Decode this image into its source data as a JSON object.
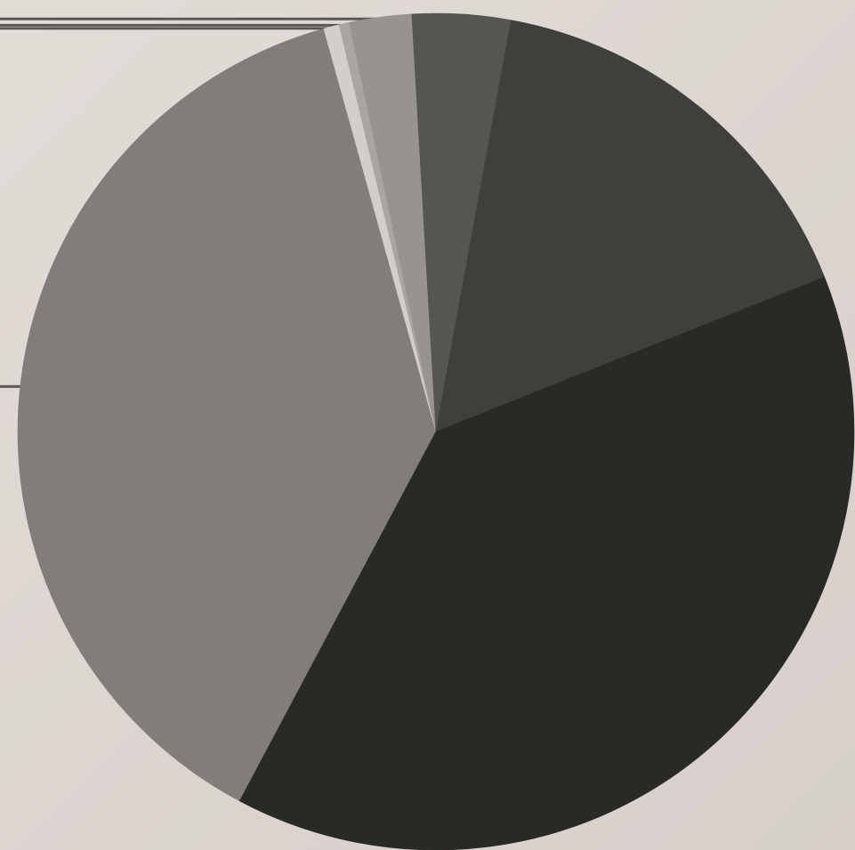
{
  "chart_data": {
    "type": "pie",
    "title": "",
    "legend": "none",
    "slices": [
      {
        "value": 37.9,
        "color": "#827d7a"
      },
      {
        "value": 0.6,
        "color": "#d3cecb"
      },
      {
        "value": 0.4,
        "color": "#aaa5a2"
      },
      {
        "value": 2.4,
        "color": "#969391"
      },
      {
        "value": 3.8,
        "color": "#555652"
      },
      {
        "value": 16.1,
        "color": "#3f403c"
      },
      {
        "value": 38.8,
        "color": "#272a25"
      }
    ]
  }
}
